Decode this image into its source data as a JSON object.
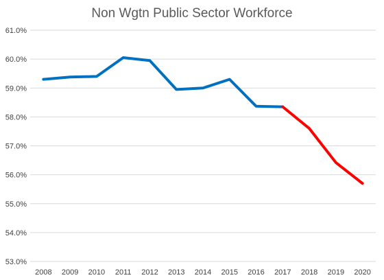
{
  "chart_data": {
    "type": "line",
    "title": "Non Wgtn Public Sector Workforce",
    "xlabel": "",
    "ylabel": "",
    "x": [
      "2008",
      "2009",
      "2010",
      "2011",
      "2012",
      "2013",
      "2014",
      "2015",
      "2016",
      "2017",
      "2018",
      "2019",
      "2020"
    ],
    "ylim": [
      53.0,
      61.0
    ],
    "yticks": [
      "53.0%",
      "54.0%",
      "55.0%",
      "56.0%",
      "57.0%",
      "58.0%",
      "59.0%",
      "60.0%",
      "61.0%"
    ],
    "grid": true,
    "legend": "none",
    "series": [
      {
        "color": "#0070c0",
        "x": [
          "2008",
          "2009",
          "2010",
          "2011",
          "2012",
          "2013",
          "2014",
          "2015",
          "2016",
          "2017"
        ],
        "values": [
          59.3,
          59.38,
          59.4,
          60.05,
          59.95,
          58.95,
          59.0,
          59.3,
          58.37,
          58.35
        ]
      },
      {
        "color": "#ff0000",
        "x": [
          "2017",
          "2018",
          "2019",
          "2020"
        ],
        "values": [
          58.35,
          57.6,
          56.42,
          55.7
        ]
      }
    ]
  }
}
